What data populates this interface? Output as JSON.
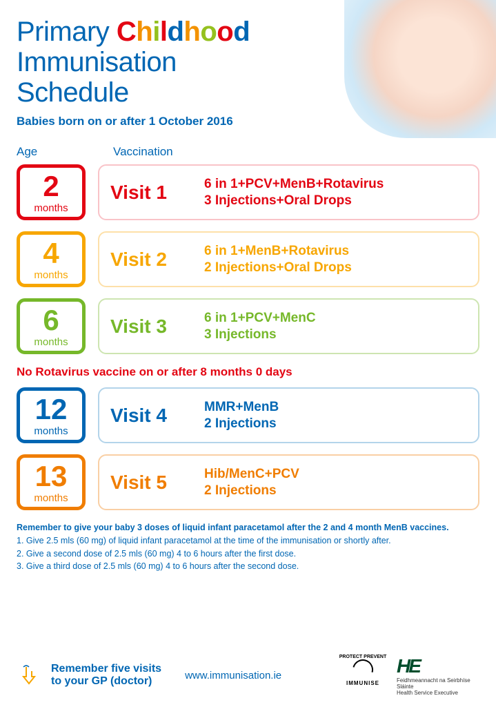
{
  "header": {
    "title_word1": "Primary",
    "title_word2_letters": [
      "C",
      "h",
      "i",
      "l",
      "d",
      "h",
      "o",
      "o",
      "d"
    ],
    "title_word2_colors": [
      "#e30613",
      "#f39200",
      "#95c11f",
      "#e30613",
      "#0066b3",
      "#f39200",
      "#95c11f",
      "#e30613",
      "#0066b3"
    ],
    "title_line2": "Immunisation",
    "title_line3": "Schedule",
    "subtitle": "Babies born on or after 1 October 2016",
    "col_age": "Age",
    "col_vacc": "Vaccination"
  },
  "colors": {
    "v1_border": "#e30613",
    "v1_light": "#f9c3c8",
    "v2_border": "#f7a600",
    "v2_light": "#fde0a9",
    "v3_border": "#76b82a",
    "v3_light": "#cde5b1",
    "v4_border": "#0066b3",
    "v4_light": "#b3d4ea",
    "v5_border": "#f07d00",
    "v5_light": "#f9cfa4",
    "red_text": "#e30613",
    "blue_text": "#0066b3"
  },
  "visits": [
    {
      "age_num": "2",
      "age_unit": "months",
      "visit": "Visit 1",
      "vacc": "6 in 1+PCV+MenB+Rotavirus",
      "inj": "3 Injections+Oral Drops",
      "c": "v1"
    },
    {
      "age_num": "4",
      "age_unit": "months",
      "visit": "Visit 2",
      "vacc": "6 in 1+MenB+Rotavirus",
      "inj": "2 Injections+Oral Drops",
      "c": "v2"
    },
    {
      "age_num": "6",
      "age_unit": "months",
      "visit": "Visit 3",
      "vacc": "6 in 1+PCV+MenC",
      "inj": "3 Injections",
      "c": "v3"
    }
  ],
  "rota_note": "No Rotavirus vaccine on or after 8 months 0 days",
  "visits2": [
    {
      "age_num": "12",
      "age_unit": "months",
      "visit": "Visit 4",
      "vacc": "MMR+MenB",
      "inj": "2 Injections",
      "c": "v4"
    },
    {
      "age_num": "13",
      "age_unit": "months",
      "visit": "Visit 5",
      "vacc": "Hib/MenC+PCV",
      "inj": "2 Injections",
      "c": "v5"
    }
  ],
  "notes": {
    "bold": "Remember to give your baby 3 doses of liquid infant paracetamol after the 2 and 4 month MenB vaccines.",
    "n1": "1. Give 2.5 mls (60 mg) of liquid infant paracetamol at the time of the immunisation or shortly after.",
    "n2": "2. Give a second dose of 2.5 mls (60 mg) 4 to 6 hours after the first dose.",
    "n3": "3. Give a third dose of 2.5 mls (60 mg) 4 to 6 hours after the second dose."
  },
  "footer": {
    "remember1": "Remember five visits",
    "remember2": "to your GP (doctor)",
    "url": "www.immunisation.ie",
    "immunise1": "PROTECT PREVENT",
    "immunise2": "IMMUNISE",
    "hse_mark": "HE",
    "hse_ga": "Feidhmeannacht na Seirbhíse Sláinte",
    "hse_en": "Health Service Executive"
  }
}
